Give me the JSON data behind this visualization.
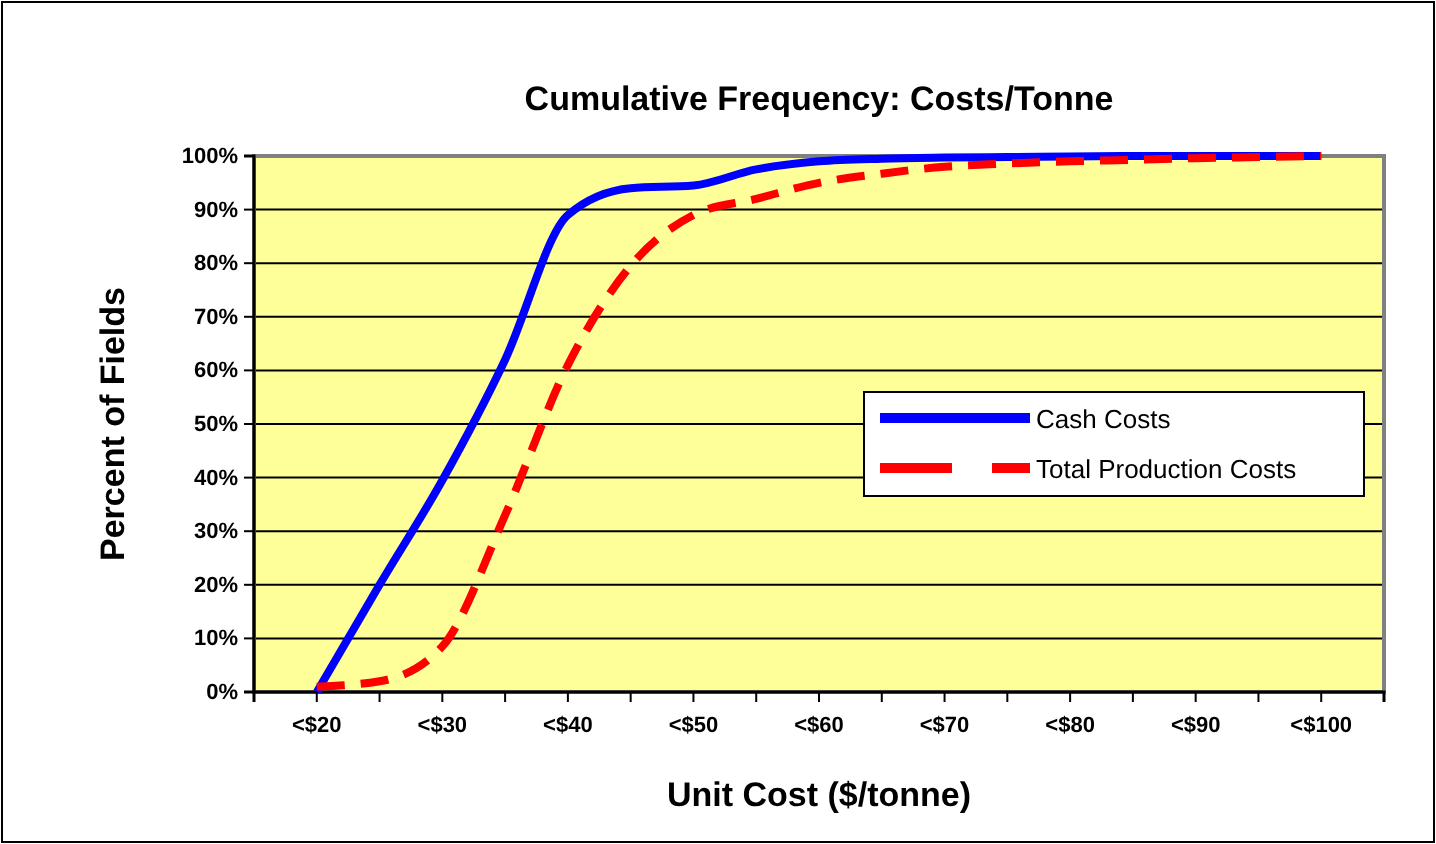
{
  "chart_data": {
    "type": "line",
    "title": "Cumulative Frequency: Costs/Tonne",
    "xlabel": "Unit Cost ($/tonne)",
    "ylabel": "Percent of Fields",
    "categories": [
      null,
      "<$20",
      null,
      "<$30",
      null,
      "<$40",
      null,
      "<$50",
      null,
      "<$60",
      null,
      "<$70",
      null,
      "<$80",
      null,
      "<$90",
      null,
      "<$100",
      null
    ],
    "series": [
      {
        "name": "Cash Costs",
        "color": "#0000ff",
        "line_style": "solid",
        "values": [
          null,
          0,
          20,
          39.5,
          62,
          89,
          94,
          94.5,
          97.5,
          99,
          99.5,
          99.7,
          99.8,
          99.9,
          100,
          100,
          100,
          100,
          null
        ]
      },
      {
        "name": "Total Production Costs",
        "color": "#ff0000",
        "line_style": "dashed",
        "values": [
          null,
          1,
          2,
          8.5,
          33,
          61,
          79.5,
          89,
          92,
          95,
          96.7,
          98,
          98.6,
          99,
          99.3,
          99.6,
          99.8,
          100,
          null
        ]
      }
    ],
    "ylim": [
      0,
      100
    ],
    "yticks": [
      {
        "value": 0,
        "label": "0%"
      },
      {
        "value": 10,
        "label": "10%"
      },
      {
        "value": 20,
        "label": "20%"
      },
      {
        "value": 30,
        "label": "30%"
      },
      {
        "value": 40,
        "label": "40%"
      },
      {
        "value": 50,
        "label": "50%"
      },
      {
        "value": 60,
        "label": "60%"
      },
      {
        "value": 70,
        "label": "70%"
      },
      {
        "value": 80,
        "label": "80%"
      },
      {
        "value": 90,
        "label": "90%"
      },
      {
        "value": 100,
        "label": "100%"
      }
    ],
    "grid": "y",
    "legend": "right",
    "marker": "none"
  }
}
